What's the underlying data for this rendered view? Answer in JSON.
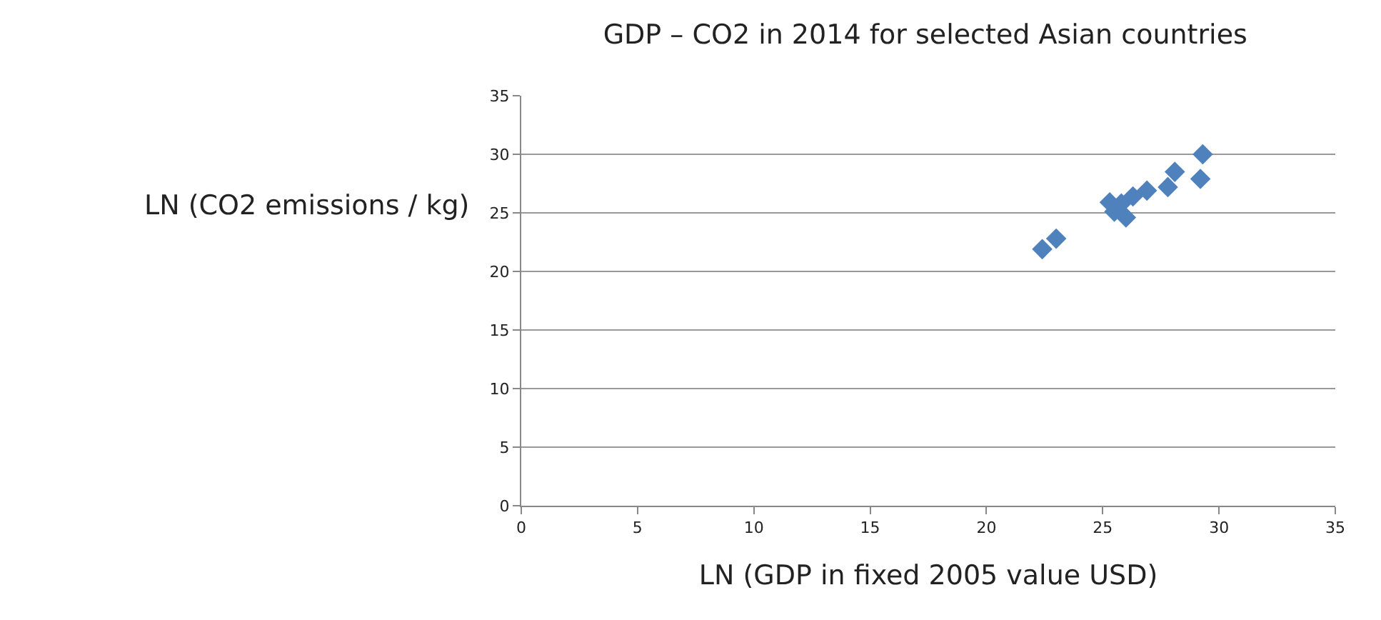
{
  "chart_data": {
    "type": "scatter",
    "title": "GDP – CO2 in 2014 for selected Asian countries",
    "xlabel": "LN (GDP in fixed 2005 value USD)",
    "ylabel": "LN (CO2 emissions / kg)",
    "x": [
      22.4,
      23.0,
      25.3,
      25.5,
      25.8,
      26.0,
      26.3,
      26.9,
      27.8,
      28.1,
      29.2,
      29.3
    ],
    "series": [
      {
        "color": "#4f81bd",
        "values": [
          21.9,
          22.8,
          25.9,
          25.1,
          25.8,
          24.6,
          26.4,
          26.9,
          27.2,
          28.5,
          27.9,
          30.0
        ]
      }
    ],
    "xlim": [
      0,
      35
    ],
    "xticks": [
      0,
      5,
      10,
      15,
      20,
      25,
      30,
      35
    ],
    "ylim": [
      0,
      35
    ],
    "yticks": [
      0,
      5,
      10,
      15,
      20,
      25,
      30,
      35
    ],
    "grid": "y",
    "marker": "diamond",
    "legend": false
  }
}
